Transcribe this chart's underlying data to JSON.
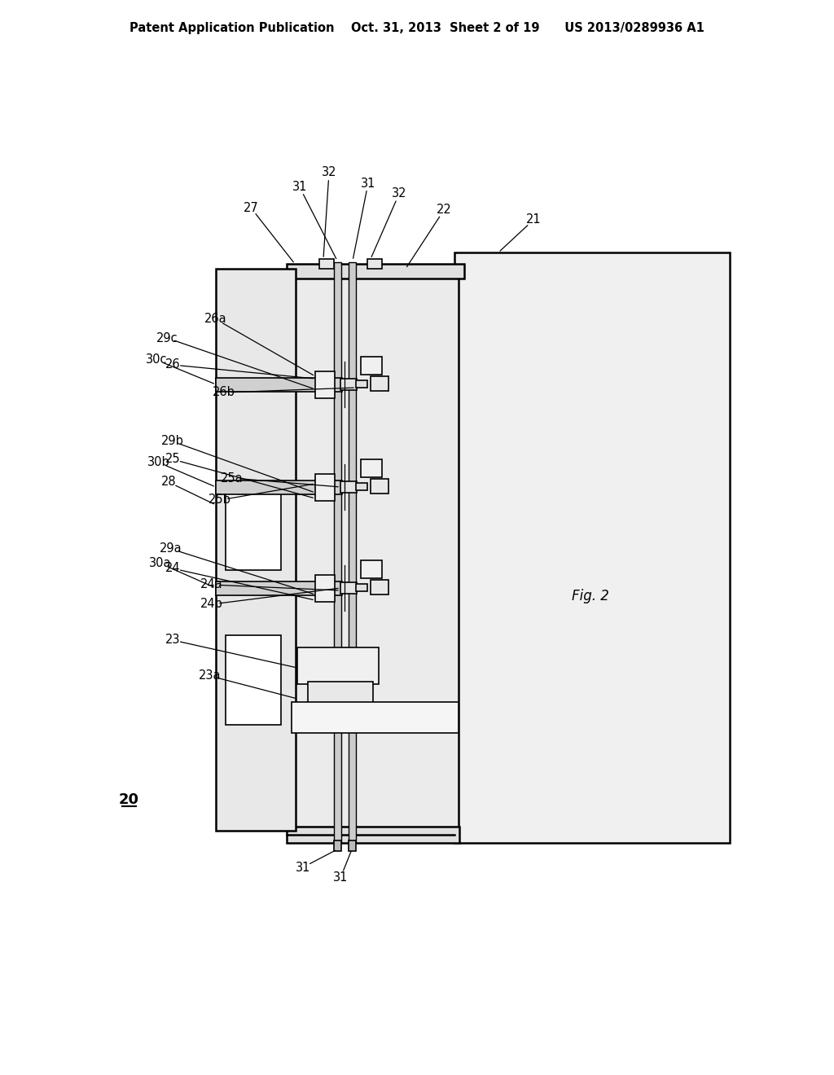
{
  "bg_color": "#ffffff",
  "line_color": "#000000",
  "header_text": "Patent Application Publication    Oct. 31, 2013  Sheet 2 of 19      US 2013/0289936 A1",
  "fig_label": "Fig. 2",
  "device_label": "20",
  "lw_main": 1.8,
  "lw_detail": 1.2,
  "fs": 10.5
}
